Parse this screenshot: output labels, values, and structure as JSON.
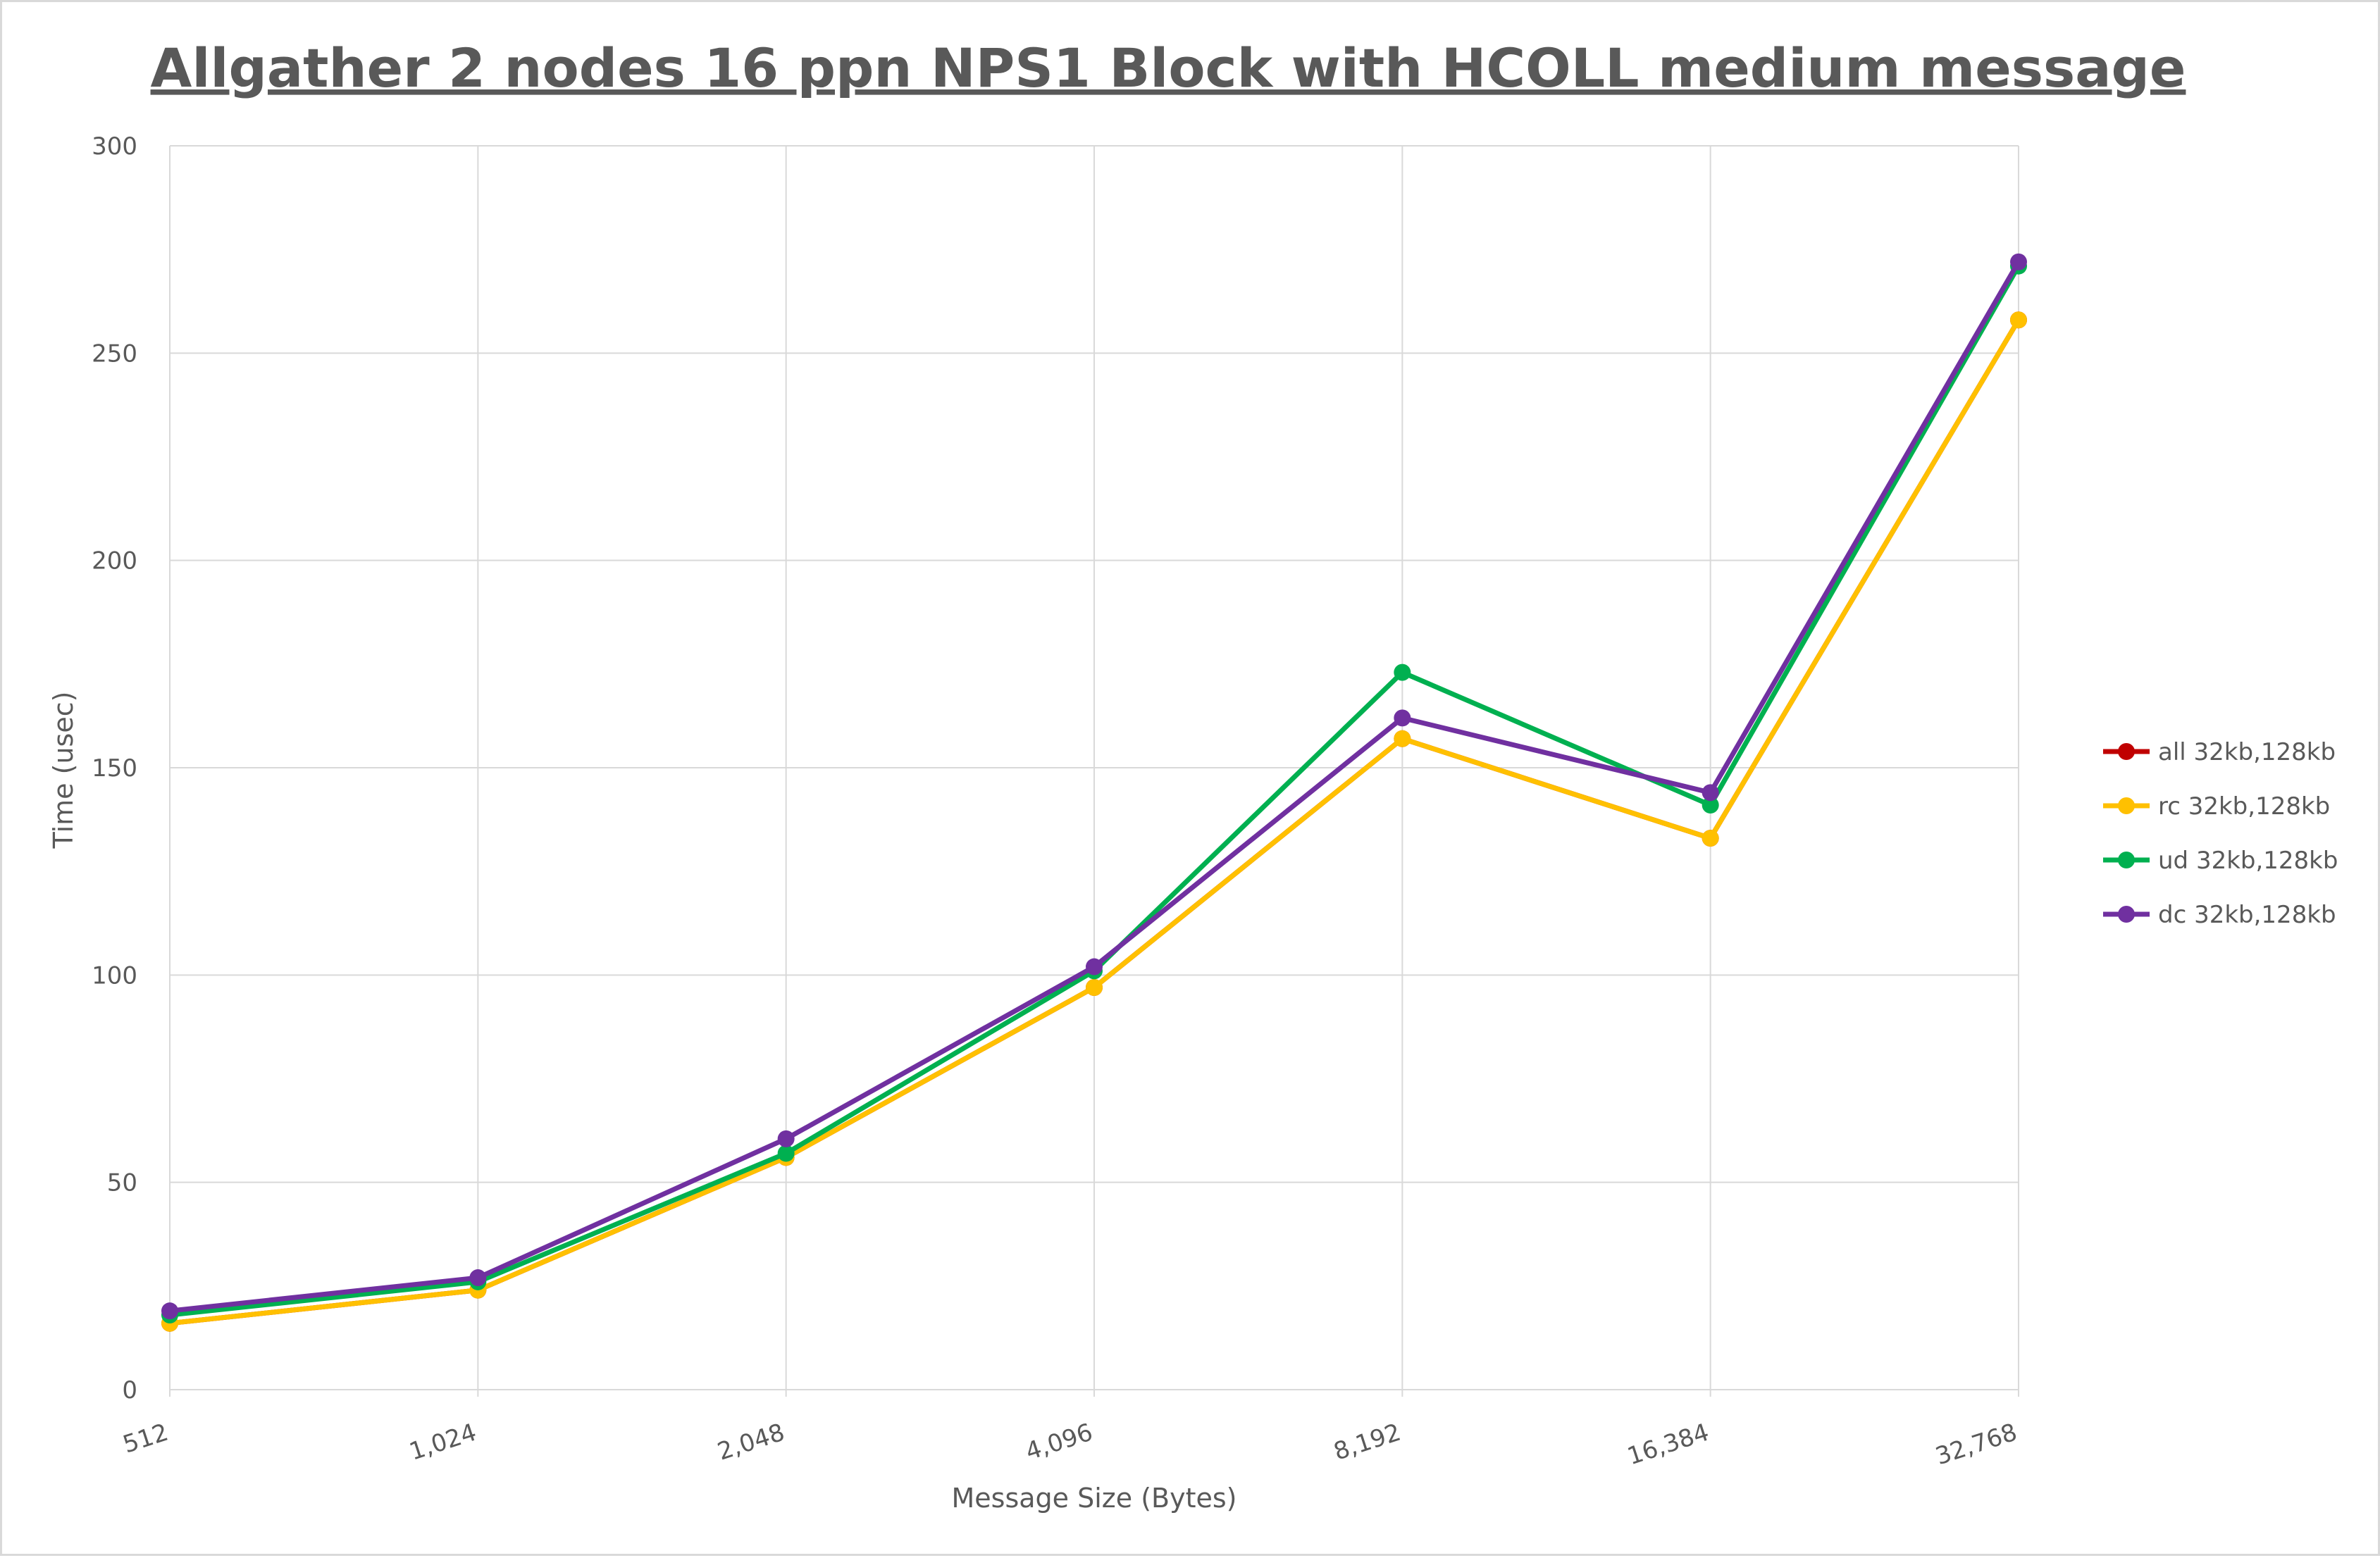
{
  "chart_data": {
    "type": "line",
    "title": "Allgather 2 nodes 16 ppn NPS1 Block with HCOLL medium message",
    "xlabel": "Message Size (Bytes)",
    "ylabel": "Time (usec)",
    "categories": [
      "512",
      "1,024",
      "2,048",
      "4,096",
      "8,192",
      "16,384",
      "32,768"
    ],
    "ylim": [
      0,
      300
    ],
    "yticks": [
      0,
      50,
      100,
      150,
      200,
      250,
      300
    ],
    "grid": true,
    "legend_position": "right",
    "series": [
      {
        "name": "all 32kb,128kb",
        "color": "#c00000",
        "values": [
          16,
          24,
          56,
          97,
          157,
          133,
          258
        ]
      },
      {
        "name": "rc 32kb,128kb",
        "color": "#ffc000",
        "values": [
          16,
          24,
          56,
          97,
          157,
          133,
          258
        ]
      },
      {
        "name": "ud 32kb,128kb",
        "color": "#00b050",
        "values": [
          18,
          26,
          57,
          101,
          173,
          141,
          271
        ]
      },
      {
        "name": "dc 32kb,128kb",
        "color": "#7030a0",
        "values": [
          19,
          27,
          60.5,
          102,
          162,
          144,
          272
        ]
      }
    ]
  }
}
